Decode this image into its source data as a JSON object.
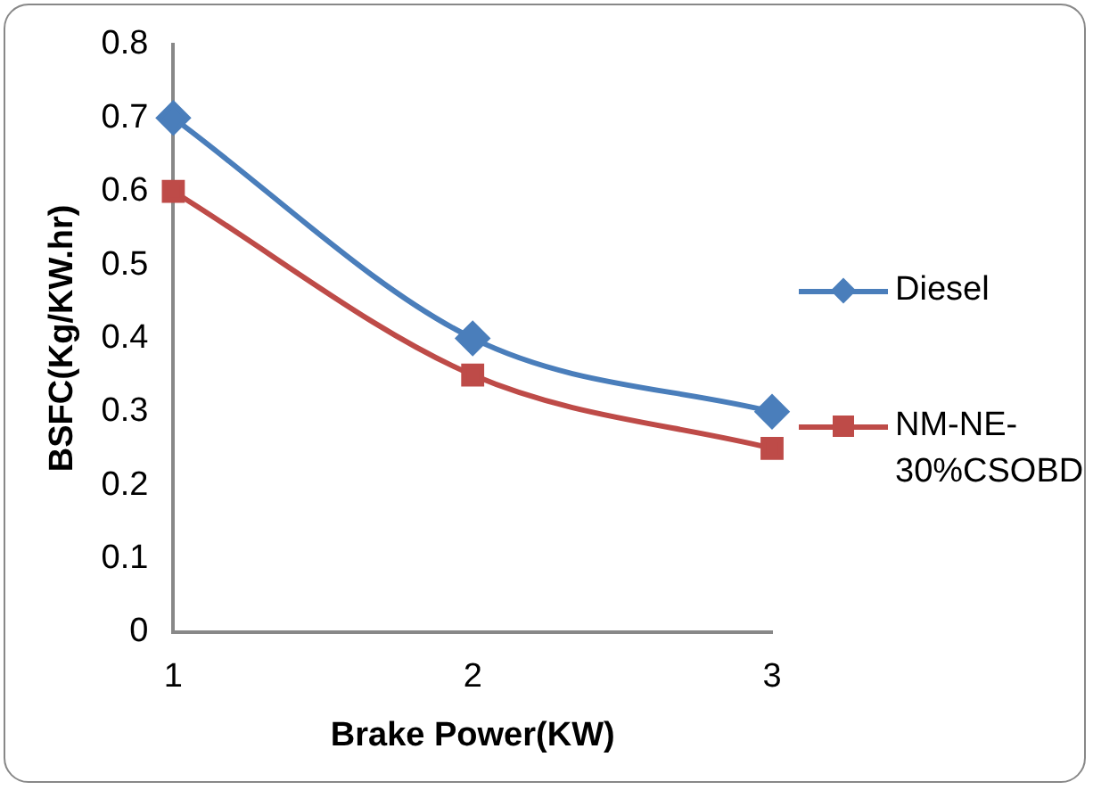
{
  "chart_data": {
    "type": "line",
    "xlabel": "Brake Power(KW)",
    "ylabel": "BSFC(Kg/KW.hr)",
    "categories": [
      "1",
      "2",
      "3"
    ],
    "series": [
      {
        "name": "Diesel",
        "color": "#4a7ebb",
        "marker": "diamond",
        "values": [
          0.7,
          0.4,
          0.3
        ]
      },
      {
        "name": "NM-NE-30%CSOBD",
        "color": "#be4b48",
        "marker": "square",
        "values": [
          0.6,
          0.35,
          0.25
        ]
      }
    ],
    "ylim": [
      0,
      0.8
    ],
    "yticks": [
      0,
      0.1,
      0.2,
      0.3,
      0.4,
      0.5,
      0.6,
      0.7,
      0.8
    ],
    "grid": false,
    "legend": "right"
  }
}
